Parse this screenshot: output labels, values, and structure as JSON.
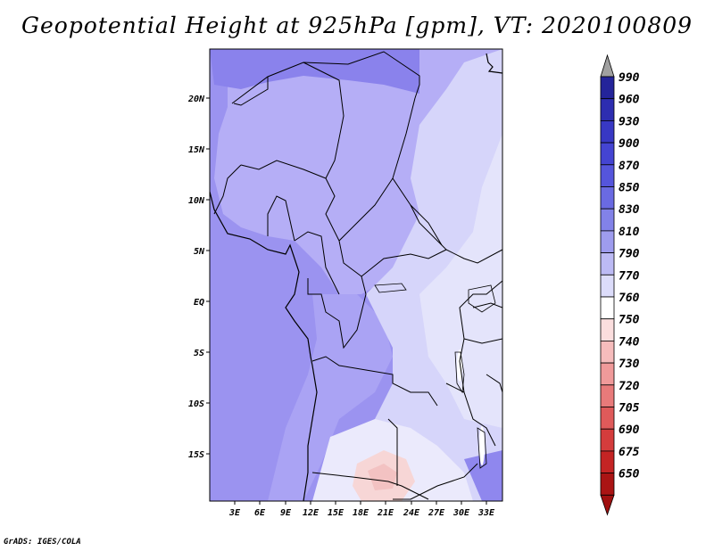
{
  "title": "Geopotential Height at 925hPa [gpm], VT: 2020100809",
  "credit": "GrADS: IGES/COLA",
  "map": {
    "lon_labels": [
      "3E",
      "6E",
      "9E",
      "12E",
      "15E",
      "18E",
      "21E",
      "24E",
      "27E",
      "30E",
      "33E"
    ],
    "lat_labels": [
      "20N",
      "15N",
      "10N",
      "5N",
      "EQ",
      "5S",
      "10S",
      "15S"
    ],
    "region": "Central/West Africa",
    "field_colors": {
      "ocean": "#9b93f0",
      "sahara": "#b5aef6",
      "north_band": "#8a82ec",
      "east": "#d6d5fa",
      "east_light": "#e4e4fb",
      "lake": "#ffffff",
      "low_spot": "#f7d6d6"
    }
  },
  "colorbar": {
    "levels": [
      "990",
      "960",
      "930",
      "900",
      "870",
      "850",
      "830",
      "810",
      "790",
      "770",
      "760",
      "750",
      "740",
      "730",
      "720",
      "705",
      "690",
      "675",
      "650"
    ],
    "colors": [
      "#24249a",
      "#2d2db0",
      "#3838c4",
      "#4444d2",
      "#5555dc",
      "#6a6ae2",
      "#8282e8",
      "#9e9cee",
      "#bcbaf4",
      "#dcdcfa",
      "#ffffff",
      "#fbdede",
      "#f6bcbc",
      "#f09a9a",
      "#e87a7a",
      "#df5a5a",
      "#d43c3c",
      "#c42424",
      "#aa1414"
    ],
    "top_arrow_color": "#a0a0a0",
    "bottom_arrow_color": "#a01010"
  }
}
